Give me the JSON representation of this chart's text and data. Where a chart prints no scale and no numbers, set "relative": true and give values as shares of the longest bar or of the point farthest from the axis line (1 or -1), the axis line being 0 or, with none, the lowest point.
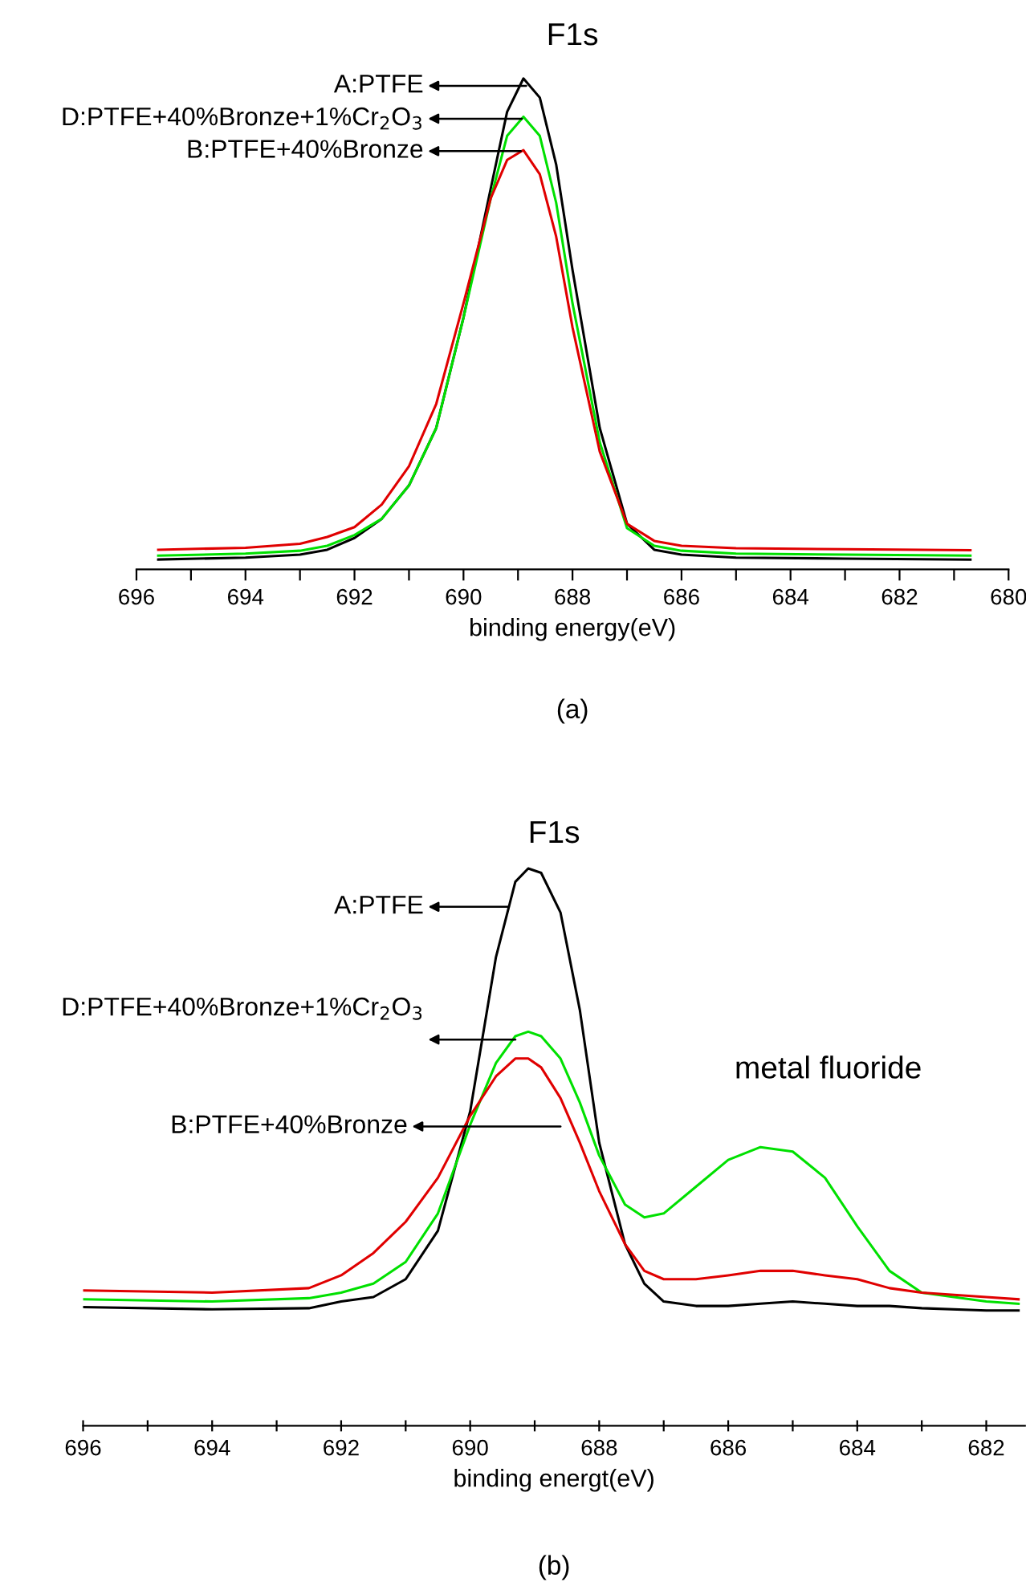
{
  "chart_data": [
    {
      "type": "line",
      "title": "F1s",
      "xlabel": "binding energy(eV)",
      "relative": true,
      "grid": false,
      "marker": "none",
      "line_style": "solid",
      "x": [
        695.6,
        694,
        693,
        692.5,
        692,
        691.5,
        691,
        690.5,
        690,
        689.5,
        689.2,
        688.9,
        688.6,
        688.3,
        688,
        687.5,
        687,
        686.5,
        686,
        685,
        683,
        680.7
      ],
      "xlim": [
        696,
        680
      ],
      "xticks": [
        696,
        {
          "value": 695,
          "label": null
        },
        694,
        {
          "value": 693,
          "label": null
        },
        692,
        {
          "value": 691,
          "label": null
        },
        690,
        {
          "value": 689,
          "label": null
        },
        688,
        {
          "value": 687,
          "label": null
        },
        686,
        {
          "value": 685,
          "label": null
        },
        684,
        {
          "value": 683,
          "label": null
        },
        682,
        {
          "value": 681,
          "label": null
        },
        680
      ],
      "tick_labels": "x",
      "series": [
        {
          "color": "#000000",
          "values": [
            0.02,
            0.024,
            0.03,
            0.04,
            0.064,
            0.103,
            0.171,
            0.288,
            0.513,
            0.776,
            0.932,
            1.0,
            0.961,
            0.825,
            0.61,
            0.288,
            0.093,
            0.04,
            0.03,
            0.024,
            0.022,
            0.02
          ]
        },
        {
          "color": "#00e000",
          "values": [
            0.028,
            0.032,
            0.038,
            0.048,
            0.07,
            0.103,
            0.171,
            0.288,
            0.513,
            0.756,
            0.883,
            0.922,
            0.883,
            0.747,
            0.542,
            0.259,
            0.084,
            0.048,
            0.038,
            0.032,
            0.03,
            0.028
          ]
        },
        {
          "color": "#e00000",
          "values": [
            0.04,
            0.044,
            0.052,
            0.066,
            0.086,
            0.132,
            0.21,
            0.337,
            0.542,
            0.756,
            0.834,
            0.854,
            0.805,
            0.678,
            0.493,
            0.24,
            0.093,
            0.058,
            0.048,
            0.043,
            0.041,
            0.039
          ]
        }
      ],
      "annotations": [
        "A:PTFE",
        "D:PTFE+40%Bronze+1%Cr$_{2}$O$_{3}$",
        "B:PTFE+40%Bronze",
        "(a)"
      ]
    },
    {
      "type": "line",
      "title": "F1s",
      "xlabel": "binding energt(eV)",
      "relative": true,
      "grid": false,
      "marker": "none",
      "line_style": "solid",
      "x": [
        696,
        694,
        692.5,
        692,
        691.5,
        691,
        690.5,
        690,
        689.6,
        689.3,
        689.1,
        688.9,
        688.6,
        688.3,
        688,
        687.6,
        687.3,
        687,
        686.5,
        686,
        685.5,
        685,
        684.5,
        684,
        683.5,
        683,
        682,
        681.5
      ],
      "xlim": [
        696,
        681.4
      ],
      "xticks": [
        696,
        {
          "value": 695,
          "label": null
        },
        694,
        {
          "value": 693,
          "label": null
        },
        692,
        {
          "value": 691,
          "label": null
        },
        690,
        {
          "value": 689,
          "label": null
        },
        688,
        {
          "value": 687,
          "label": null
        },
        686,
        {
          "value": 685,
          "label": null
        },
        684,
        {
          "value": 683,
          "label": null
        },
        682
      ],
      "tick_labels": "x",
      "series": [
        {
          "color": "#000000",
          "values": [
            0.213,
            0.209,
            0.211,
            0.223,
            0.231,
            0.263,
            0.35,
            0.564,
            0.841,
            0.976,
            1.0,
            0.992,
            0.921,
            0.746,
            0.508,
            0.326,
            0.255,
            0.223,
            0.215,
            0.215,
            0.219,
            0.223,
            0.219,
            0.215,
            0.215,
            0.211,
            0.207,
            0.207
          ]
        },
        {
          "color": "#00e000",
          "values": [
            0.227,
            0.223,
            0.229,
            0.239,
            0.255,
            0.294,
            0.381,
            0.54,
            0.651,
            0.699,
            0.707,
            0.699,
            0.659,
            0.58,
            0.485,
            0.397,
            0.374,
            0.381,
            0.429,
            0.477,
            0.5,
            0.492,
            0.445,
            0.358,
            0.278,
            0.239,
            0.223,
            0.219
          ]
        },
        {
          "color": "#e00000",
          "values": [
            0.243,
            0.239,
            0.247,
            0.27,
            0.31,
            0.366,
            0.445,
            0.556,
            0.627,
            0.659,
            0.659,
            0.643,
            0.588,
            0.508,
            0.421,
            0.326,
            0.278,
            0.263,
            0.263,
            0.27,
            0.278,
            0.278,
            0.27,
            0.263,
            0.247,
            0.239,
            0.231,
            0.227
          ]
        }
      ],
      "annotations": [
        "A:PTFE",
        "D:PTFE+40%Bronze+1%Cr$_{2}$O$_{3}$",
        "B:PTFE+40%Bronze",
        "metal fluoride",
        "(b)"
      ]
    }
  ]
}
